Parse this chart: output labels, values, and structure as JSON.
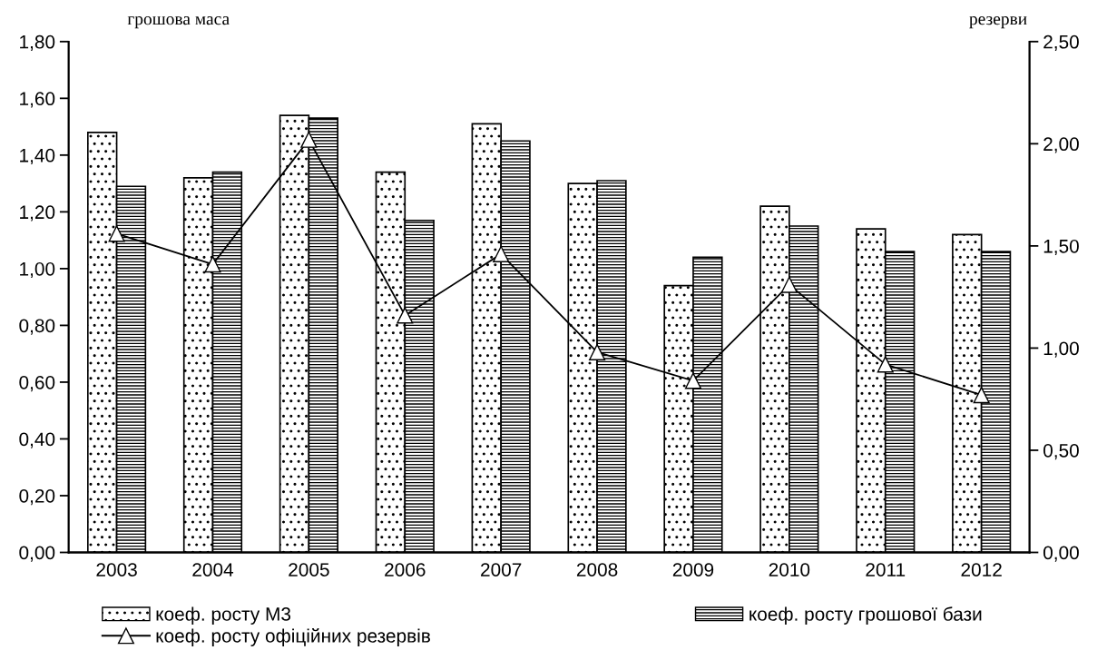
{
  "chart_data": {
    "type": "bar",
    "ylabel": "грошова маса",
    "y2label": "резерви",
    "categories": [
      "2003",
      "2004",
      "2005",
      "2006",
      "2007",
      "2008",
      "2009",
      "2010",
      "2011",
      "2012"
    ],
    "series": [
      {
        "name": "коеф. росту М3",
        "color": "#000000",
        "values": [
          1.48,
          1.32,
          1.54,
          1.34,
          1.51,
          1.3,
          0.94,
          1.22,
          1.14,
          1.12
        ]
      },
      {
        "name": "коеф. росту грошової бази",
        "color": "#000000",
        "values": [
          1.29,
          1.34,
          1.53,
          1.17,
          1.45,
          1.31,
          1.04,
          1.15,
          1.06,
          1.06
        ]
      },
      {
        "name": "коеф. росту офіційних резервів",
        "type": "line",
        "axis": "y2",
        "color": "#000000",
        "marker": "triangle",
        "line_style": "solid",
        "values": [
          1.56,
          1.41,
          2.02,
          1.16,
          1.46,
          0.98,
          0.84,
          1.31,
          0.92,
          0.77
        ]
      }
    ],
    "ylim": [
      0,
      1.8
    ],
    "yticks": [
      {
        "value": 0,
        "label": "0,00"
      },
      {
        "value": 0.2,
        "label": "0,20"
      },
      {
        "value": 0.4,
        "label": "0,40"
      },
      {
        "value": 0.6,
        "label": "0,60"
      },
      {
        "value": 0.8,
        "label": "0,80"
      },
      {
        "value": 1.0,
        "label": "1,00"
      },
      {
        "value": 1.2,
        "label": "1,20"
      },
      {
        "value": 1.4,
        "label": "1,40"
      },
      {
        "value": 1.6,
        "label": "1,60"
      },
      {
        "value": 1.8,
        "label": "1,80"
      }
    ],
    "y2lim": [
      0,
      2.5
    ],
    "y2ticks": [
      {
        "value": 0,
        "label": "0,00"
      },
      {
        "value": 0.5,
        "label": "0,50"
      },
      {
        "value": 1.0,
        "label": "1,00"
      },
      {
        "value": 1.5,
        "label": "1,50"
      },
      {
        "value": 2.0,
        "label": "2,00"
      },
      {
        "value": 2.5,
        "label": "2,50"
      }
    ],
    "grid": false,
    "legend": "bottom"
  }
}
